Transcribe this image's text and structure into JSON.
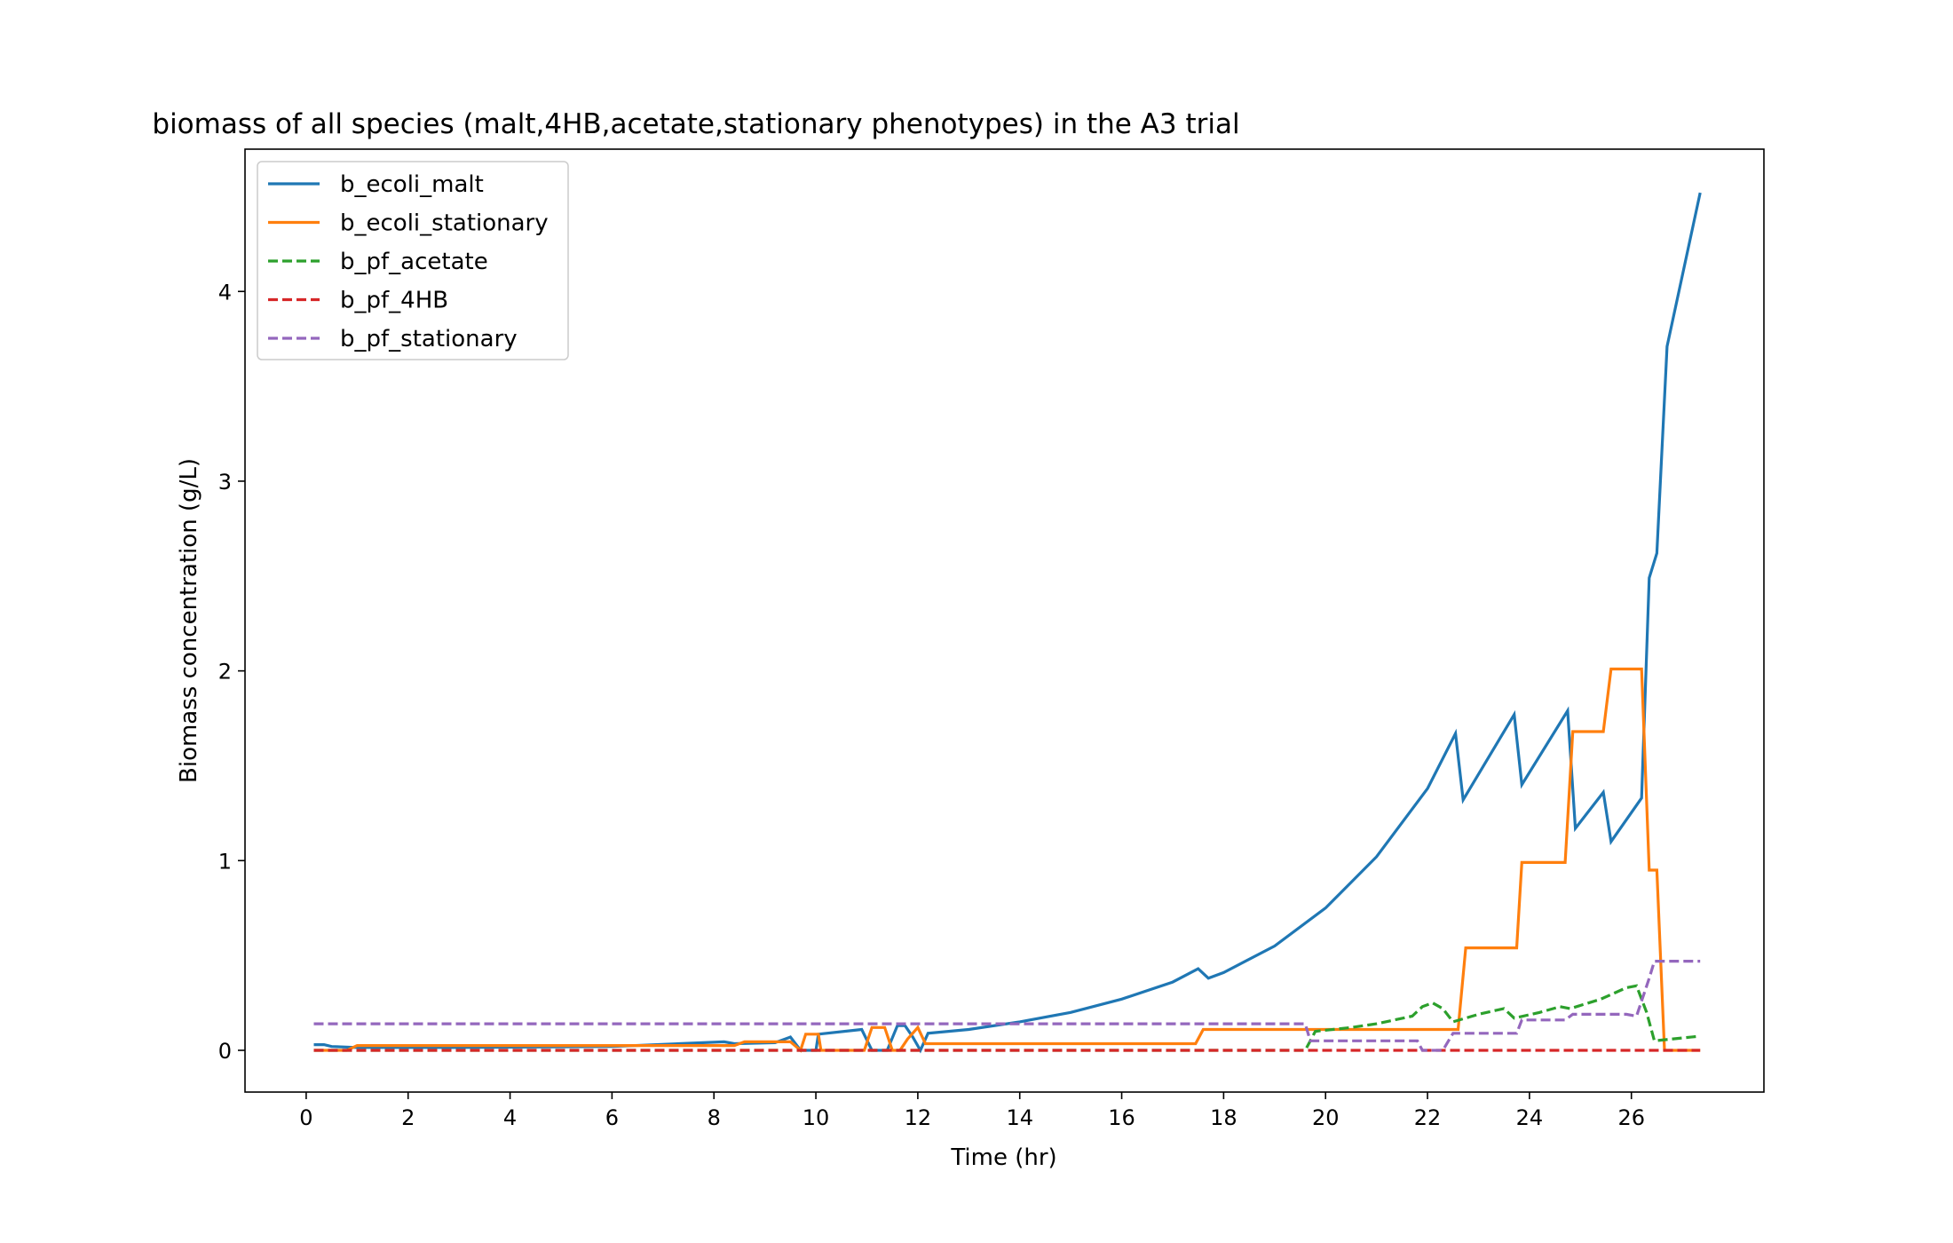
{
  "chart_data": {
    "type": "line",
    "title": "biomass of all species (malt,4HB,acetate,stationary phenotypes) in the A3 trial",
    "xlabel": "Time (hr)",
    "ylabel": "Biomass concentration (g/L)",
    "xlim": [
      -1.2,
      28.6
    ],
    "ylim": [
      -0.22,
      4.75
    ],
    "xticks": [
      0,
      2,
      4,
      6,
      8,
      10,
      12,
      14,
      16,
      18,
      20,
      22,
      24,
      26
    ],
    "yticks": [
      0,
      1,
      2,
      3,
      4
    ],
    "grid": false,
    "legend_position": "top-left",
    "series": [
      {
        "name": "b_ecoli_malt",
        "color": "#1f77b4",
        "dash": "solid",
        "points": [
          [
            0.15,
            0.03
          ],
          [
            0.35,
            0.03
          ],
          [
            0.5,
            0.02
          ],
          [
            1.0,
            0.015
          ],
          [
            3,
            0.015
          ],
          [
            6,
            0.02
          ],
          [
            8.2,
            0.045
          ],
          [
            8.4,
            0.035
          ],
          [
            9.2,
            0.04
          ],
          [
            9.5,
            0.07
          ],
          [
            9.7,
            0.0
          ],
          [
            10.0,
            0.0
          ],
          [
            10.05,
            0.085
          ],
          [
            10.9,
            0.11
          ],
          [
            11.1,
            0.0
          ],
          [
            11.4,
            0.0
          ],
          [
            11.6,
            0.13
          ],
          [
            11.75,
            0.13
          ],
          [
            11.9,
            0.07
          ],
          [
            12.05,
            0.0
          ],
          [
            12.2,
            0.09
          ],
          [
            13,
            0.11
          ],
          [
            14,
            0.15
          ],
          [
            15,
            0.2
          ],
          [
            16,
            0.27
          ],
          [
            17,
            0.36
          ],
          [
            17.5,
            0.43
          ],
          [
            17.7,
            0.38
          ],
          [
            18,
            0.41
          ],
          [
            19,
            0.55
          ],
          [
            20,
            0.75
          ],
          [
            21,
            1.02
          ],
          [
            22,
            1.38
          ],
          [
            22.55,
            1.67
          ],
          [
            22.7,
            1.32
          ],
          [
            23.7,
            1.77
          ],
          [
            23.85,
            1.4
          ],
          [
            24.75,
            1.79
          ],
          [
            24.9,
            1.17
          ],
          [
            25.45,
            1.36
          ],
          [
            25.6,
            1.1
          ],
          [
            26.2,
            1.33
          ],
          [
            26.35,
            2.49
          ],
          [
            26.5,
            2.62
          ],
          [
            26.7,
            3.71
          ],
          [
            27.35,
            4.52
          ]
        ]
      },
      {
        "name": "b_ecoli_stationary",
        "color": "#ff7f0e",
        "dash": "solid",
        "points": [
          [
            0.15,
            0.0
          ],
          [
            0.8,
            0.0
          ],
          [
            1.0,
            0.025
          ],
          [
            6.3,
            0.025
          ],
          [
            8.4,
            0.025
          ],
          [
            8.6,
            0.045
          ],
          [
            9.5,
            0.045
          ],
          [
            9.7,
            0.0
          ],
          [
            9.8,
            0.085
          ],
          [
            10.05,
            0.085
          ],
          [
            10.1,
            0.0
          ],
          [
            10.95,
            0.0
          ],
          [
            11.1,
            0.12
          ],
          [
            11.35,
            0.12
          ],
          [
            11.5,
            0.0
          ],
          [
            11.65,
            0.0
          ],
          [
            11.8,
            0.06
          ],
          [
            12.0,
            0.12
          ],
          [
            12.15,
            0.035
          ],
          [
            17.45,
            0.035
          ],
          [
            17.6,
            0.11
          ],
          [
            22.6,
            0.11
          ],
          [
            22.75,
            0.54
          ],
          [
            23.75,
            0.54
          ],
          [
            23.85,
            0.99
          ],
          [
            24.7,
            0.99
          ],
          [
            24.85,
            1.68
          ],
          [
            25.45,
            1.68
          ],
          [
            25.6,
            2.01
          ],
          [
            26.2,
            2.01
          ],
          [
            26.35,
            0.95
          ],
          [
            26.5,
            0.95
          ],
          [
            26.65,
            0.0
          ],
          [
            27.35,
            0.0
          ]
        ]
      },
      {
        "name": "b_pf_acetate",
        "color": "#2ca02c",
        "dash": "dashed",
        "points": [
          [
            0.15,
            0.0
          ],
          [
            19.6,
            0.0
          ],
          [
            19.8,
            0.1
          ],
          [
            20.5,
            0.12
          ],
          [
            21,
            0.14
          ],
          [
            21.7,
            0.18
          ],
          [
            21.9,
            0.23
          ],
          [
            22.1,
            0.25
          ],
          [
            22.3,
            0.22
          ],
          [
            22.5,
            0.15
          ],
          [
            23,
            0.19
          ],
          [
            23.5,
            0.22
          ],
          [
            23.7,
            0.17
          ],
          [
            24.2,
            0.2
          ],
          [
            24.6,
            0.23
          ],
          [
            24.8,
            0.22
          ],
          [
            25.4,
            0.27
          ],
          [
            25.9,
            0.33
          ],
          [
            26.1,
            0.34
          ],
          [
            26.3,
            0.2
          ],
          [
            26.45,
            0.05
          ],
          [
            27.35,
            0.075
          ]
        ]
      },
      {
        "name": "b_pf_4HB",
        "color": "#d62728",
        "dash": "dashed",
        "points": [
          [
            0.15,
            0.0
          ],
          [
            27.35,
            0.0
          ]
        ]
      },
      {
        "name": "b_pf_stationary",
        "color": "#9467bd",
        "dash": "dashed",
        "points": [
          [
            0.15,
            0.14
          ],
          [
            19.6,
            0.14
          ],
          [
            19.7,
            0.05
          ],
          [
            21.8,
            0.05
          ],
          [
            21.9,
            0.0
          ],
          [
            22.3,
            0.0
          ],
          [
            22.5,
            0.09
          ],
          [
            23.75,
            0.09
          ],
          [
            23.85,
            0.16
          ],
          [
            24.7,
            0.16
          ],
          [
            24.85,
            0.19
          ],
          [
            25.9,
            0.19
          ],
          [
            26.1,
            0.18
          ],
          [
            26.35,
            0.38
          ],
          [
            26.45,
            0.47
          ],
          [
            27.35,
            0.47
          ]
        ]
      }
    ]
  }
}
